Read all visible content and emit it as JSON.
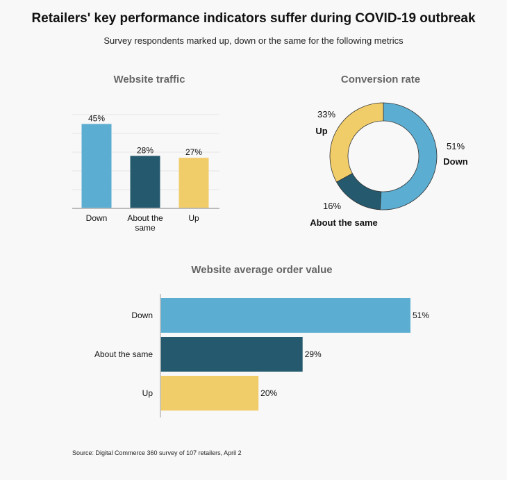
{
  "header": {
    "title": "Retailers' key performance indicators suffer during COVID-19 outbreak",
    "subtitle": "Survey respondents marked up, down or the same for the following metrics"
  },
  "colors": {
    "down": "#5badd1",
    "same": "#255a6e",
    "up": "#f1cd6a",
    "axis": "#bbbbbb",
    "grid": "#e6e6e6"
  },
  "chart_data": [
    {
      "type": "bar",
      "title": "Website traffic",
      "categories": [
        "Down",
        "About the same",
        "Up"
      ],
      "category_lines": [
        [
          "Down"
        ],
        [
          "About the",
          "same"
        ],
        [
          "Up"
        ]
      ],
      "values": [
        45,
        28,
        27
      ],
      "value_labels": [
        "45%",
        "28%",
        "27%"
      ],
      "ylim": [
        0,
        50
      ],
      "grid": true
    },
    {
      "type": "pie",
      "title": "Conversion rate",
      "categories": [
        "Down",
        "About the same",
        "Up"
      ],
      "values": [
        51,
        16,
        33
      ],
      "value_labels": [
        "51%",
        "16%",
        "33%"
      ]
    },
    {
      "type": "bar",
      "orientation": "horizontal",
      "title": "Website average order value",
      "categories": [
        "Down",
        "About the same",
        "Up"
      ],
      "values": [
        51,
        29,
        20
      ],
      "value_labels": [
        "51%",
        "29%",
        "20%"
      ],
      "xlim": [
        0,
        51
      ]
    }
  ],
  "source": "Source: Digital Commerce 360 survey of 107 retailers, April 2"
}
